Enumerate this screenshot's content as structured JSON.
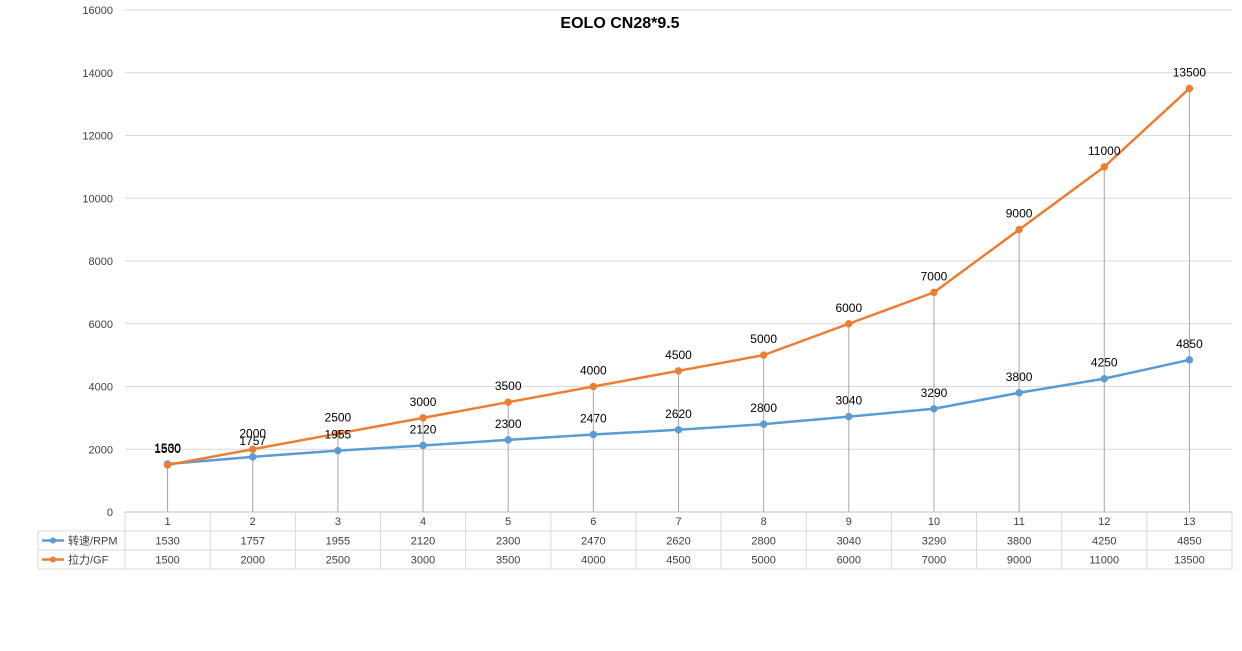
{
  "chart_data": {
    "type": "line",
    "title": "EOLO CN28*9.5",
    "categories": [
      "1",
      "2",
      "3",
      "4",
      "5",
      "6",
      "7",
      "8",
      "9",
      "10",
      "11",
      "12",
      "13"
    ],
    "ylim": [
      0,
      16000
    ],
    "yticks": [
      0,
      2000,
      4000,
      6000,
      8000,
      10000,
      12000,
      14000,
      16000
    ],
    "grid": "horizontal",
    "legend": "data-table",
    "drop_lines": true,
    "data_labels": true,
    "series": [
      {
        "name": "转速/RPM",
        "color": "#5b9bd5",
        "values": [
          1530,
          1757,
          1955,
          2120,
          2300,
          2470,
          2620,
          2800,
          3040,
          3290,
          3800,
          4250,
          4850
        ]
      },
      {
        "name": "拉力/GF",
        "color": "#ed7d31",
        "values": [
          1500,
          2000,
          2500,
          3000,
          3500,
          4000,
          4500,
          5000,
          6000,
          7000,
          9000,
          11000,
          13500
        ]
      }
    ]
  }
}
